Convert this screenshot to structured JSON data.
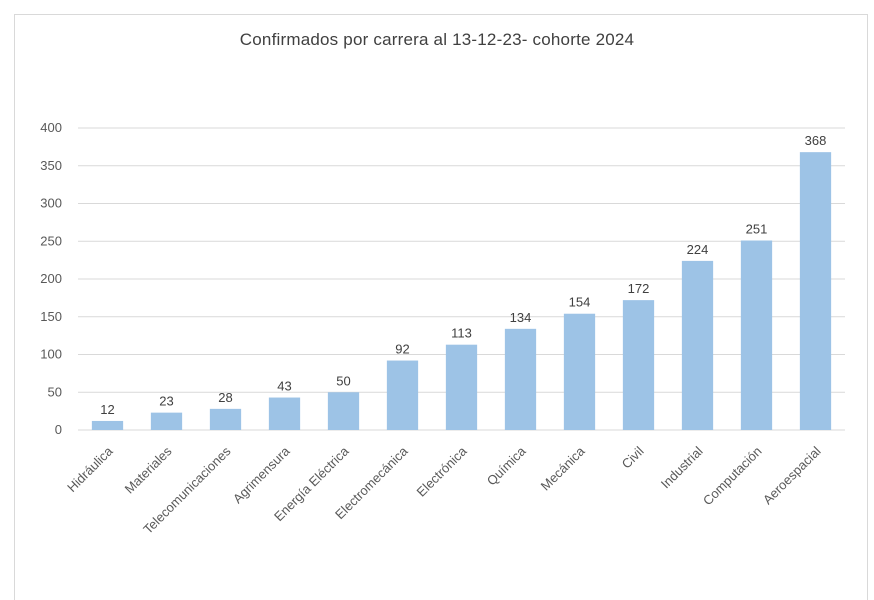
{
  "chart_data": {
    "type": "bar",
    "title": "Confirmados por carrera al 13-12-23- cohorte 2024",
    "categories": [
      "Hidráulica",
      "Materiales",
      "Telecomunicaciones",
      "Agrimensura",
      "Energía Eléctrica",
      "Electromecánica",
      "Electrónica",
      "Química",
      "Mecánica",
      "Civil",
      "Industrial",
      "Computación",
      "Aeroespacial"
    ],
    "values": [
      12,
      23,
      28,
      43,
      50,
      92,
      113,
      134,
      154,
      172,
      224,
      251,
      368
    ],
    "ylim": [
      0,
      400
    ],
    "yticks": [
      0,
      50,
      100,
      150,
      200,
      250,
      300,
      350,
      400
    ],
    "grid": true,
    "legend": "none",
    "bar_color": "#9dc3e6",
    "grid_color": "#d9d9d9"
  }
}
